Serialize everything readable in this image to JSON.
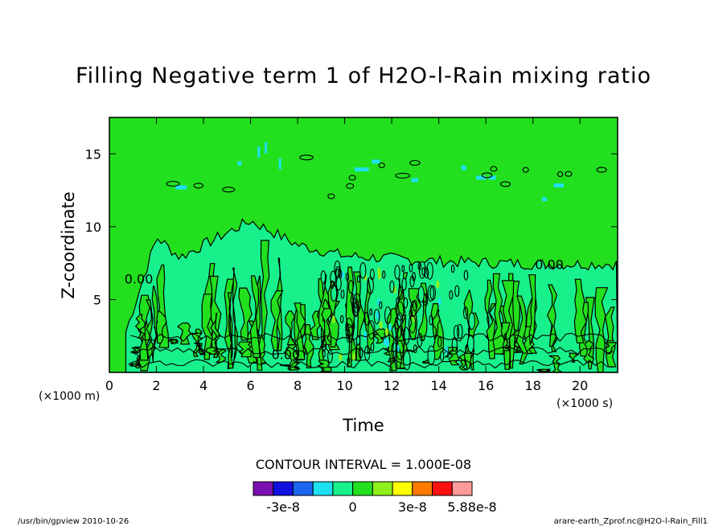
{
  "chart_data": {
    "type": "heatmap",
    "title": "Filling Negative term 1 of H2O-l-Rain mixing ratio",
    "xlabel": "Time",
    "ylabel": "Z-coordinate",
    "x_unit": "(×1000 s)",
    "y_unit": "(×1000 m)",
    "xlim": [
      0,
      21.6
    ],
    "ylim": [
      0,
      17.5
    ],
    "x_ticks": [
      "0",
      "2",
      "4",
      "6",
      "8",
      "10",
      "12",
      "14",
      "16",
      "18",
      "20"
    ],
    "y_ticks": [
      "5",
      "10",
      "15"
    ],
    "contour_interval": "CONTOUR INTERVAL = 1.000E-08",
    "contour_label": "0.00",
    "colorbar": {
      "colors": [
        "#7a10b0",
        "#1010e0",
        "#1a66ee",
        "#1ee0f0",
        "#18f08c",
        "#22e01e",
        "#8ef01a",
        "#ffff00",
        "#ff7a00",
        "#ff1010",
        "#ff9a9a"
      ],
      "tick_labels": [
        "-3e-8",
        "0",
        "3e-8",
        "5.88e-8"
      ]
    },
    "background_value_color": "#22e01e"
  },
  "footer": {
    "left": "/usr/bin/gpview  2010-10-26",
    "right": "arare-earth_Zprof.nc@H2O-l-Rain_Fill1"
  }
}
